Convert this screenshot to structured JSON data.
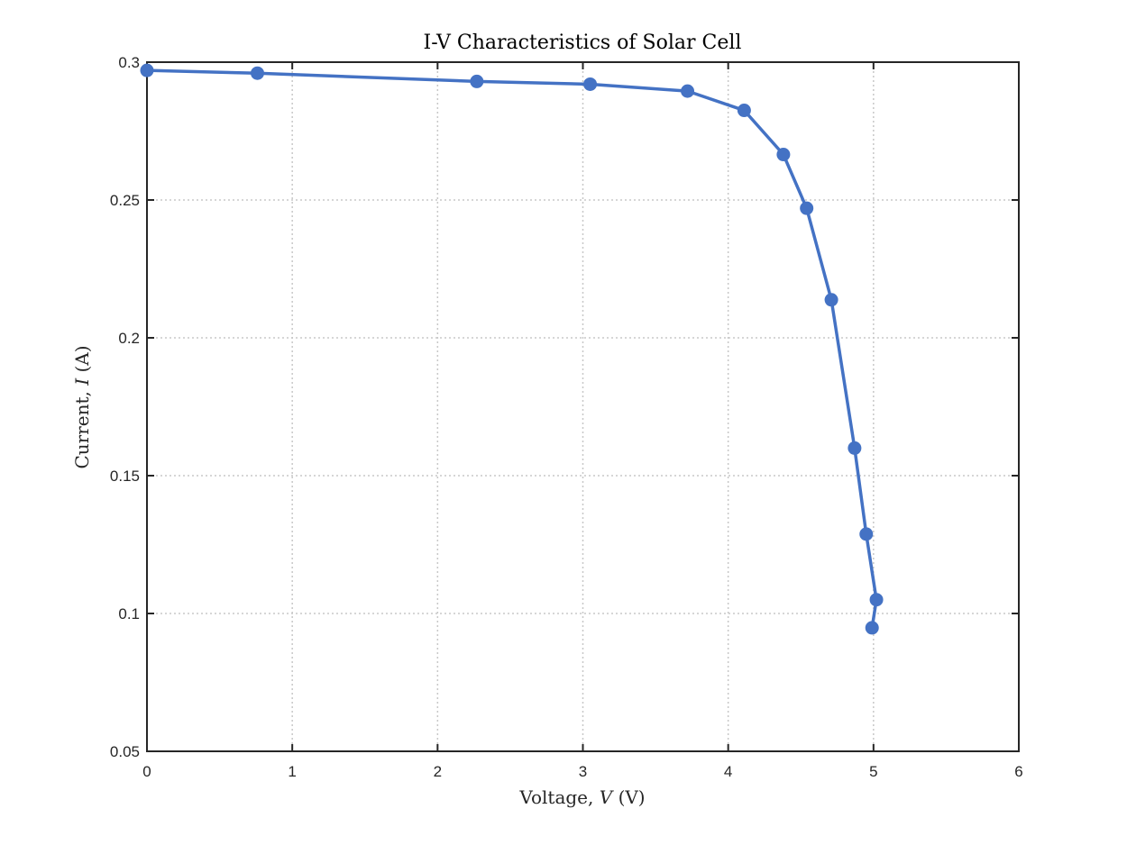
{
  "chart_data": {
    "type": "line",
    "title": "I-V Characteristics of Solar Cell",
    "xlabel": {
      "prefix": "Voltage,",
      "symbol": "V",
      "unit": "(V)"
    },
    "ylabel": {
      "prefix": "Current,",
      "symbol": "I",
      "unit": "(A)"
    },
    "xlim": [
      0,
      6
    ],
    "ylim": [
      0.05,
      0.3
    ],
    "xticks": [
      0,
      1,
      2,
      3,
      4,
      5,
      6
    ],
    "xtick_labels": [
      "0",
      "1",
      "2",
      "3",
      "4",
      "5",
      "6"
    ],
    "yticks": [
      0.05,
      0.1,
      0.15,
      0.2,
      0.25,
      0.3
    ],
    "ytick_labels": [
      "0.05",
      "0.1",
      "0.15",
      "0.2",
      "0.25",
      "0.3"
    ],
    "grid": true,
    "series": [
      {
        "color": "#4472C4",
        "marker": "circle",
        "x": [
          0,
          0.76,
          2.27,
          3.05,
          3.72,
          4.11,
          4.38,
          4.54,
          4.71,
          4.87,
          4.95,
          5.02,
          4.99
        ],
        "y": [
          0.297,
          0.296,
          0.293,
          0.292,
          0.2895,
          0.2825,
          0.2665,
          0.247,
          0.2138,
          0.16,
          0.1288,
          0.105,
          0.0948
        ]
      }
    ]
  }
}
